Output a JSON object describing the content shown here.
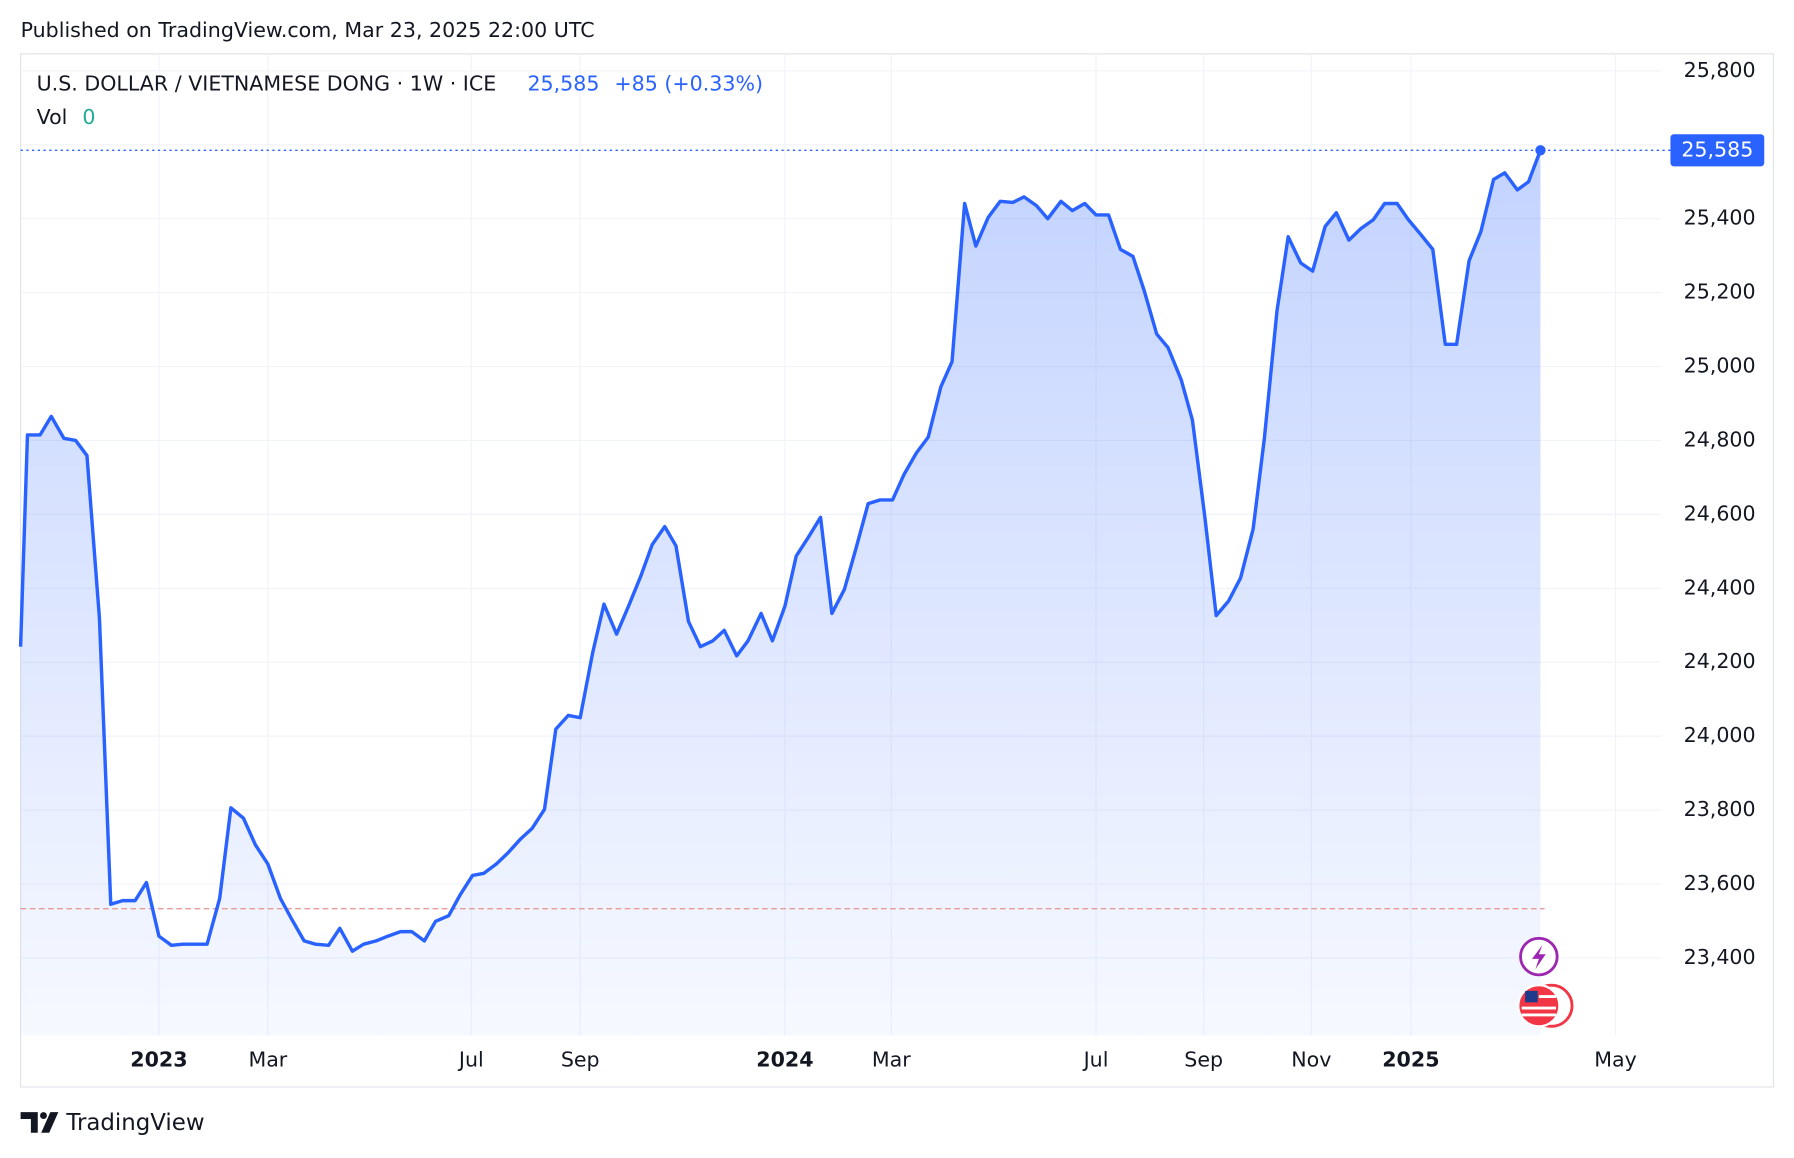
{
  "header": {
    "published": "Published on TradingView.com, Mar 23, 2025 22:00 UTC"
  },
  "footer": {
    "brand": "TradingView"
  },
  "chart_data": {
    "type": "area",
    "title": "U.S. DOLLAR / VIETNAMESE DONG · 1W · ICE",
    "price_label": "25,585",
    "change_label": "+85 (+0.33%)",
    "vol_label": "Vol",
    "vol_value": 0,
    "last_label": "25,585",
    "color": "#2962ff",
    "baseline": 23533,
    "grid": true,
    "xlim": [
      2022.779,
      2025.4
    ],
    "ylim": [
      23190,
      25846
    ],
    "xticks": [
      2023,
      {
        "value": 2023.174,
        "label": "Mar"
      },
      {
        "value": 2023.499,
        "label": "Jul"
      },
      {
        "value": 2023.673,
        "label": "Sep"
      },
      2024,
      {
        "value": 2024.17,
        "label": "Mar"
      },
      {
        "value": 2024.497,
        "label": "Jul"
      },
      {
        "value": 2024.669,
        "label": "Sep"
      },
      {
        "value": 2024.841,
        "label": "Nov"
      },
      2025,
      {
        "value": 2025.327,
        "label": "May"
      }
    ],
    "yticks": [
      {
        "value": 23400,
        "label": "23,400"
      },
      {
        "value": 23600,
        "label": "23,600"
      },
      {
        "value": 23800,
        "label": "23,800"
      },
      {
        "value": 24000,
        "label": "24,000"
      },
      {
        "value": 24200,
        "label": "24,200"
      },
      {
        "value": 24400,
        "label": "24,400"
      },
      {
        "value": 24600,
        "label": "24,600"
      },
      {
        "value": 24800,
        "label": "24,800"
      },
      {
        "value": 25000,
        "label": "25,000"
      },
      {
        "value": 25200,
        "label": "25,200"
      },
      {
        "value": 25400,
        "label": "25,400"
      },
      {
        "value": 25600,
        "label": "25,600"
      },
      {
        "value": 25800,
        "label": "25,800"
      }
    ],
    "x": [
      2022.779,
      2022.79,
      2022.81,
      2022.828,
      2022.848,
      2022.867,
      2022.885,
      2022.905,
      2022.923,
      2022.942,
      2022.962,
      2022.98,
      2023.0,
      2023.02,
      2023.038,
      2023.059,
      2023.077,
      2023.097,
      2023.115,
      2023.135,
      2023.154,
      2023.174,
      2023.194,
      2023.212,
      2023.232,
      2023.25,
      2023.271,
      2023.289,
      2023.309,
      2023.327,
      2023.347,
      2023.366,
      2023.386,
      2023.404,
      2023.424,
      2023.442,
      2023.463,
      2023.481,
      2023.501,
      2023.519,
      2023.539,
      2023.558,
      2023.578,
      2023.596,
      2023.616,
      2023.634,
      2023.654,
      2023.673,
      2023.693,
      2023.711,
      2023.731,
      2023.75,
      2023.77,
      2023.788,
      2023.808,
      2023.826,
      2023.846,
      2023.865,
      2023.885,
      2023.903,
      2023.923,
      2023.941,
      2023.962,
      2023.98,
      2024.0,
      2024.018,
      2024.037,
      2024.057,
      2024.075,
      2024.095,
      2024.113,
      2024.133,
      2024.152,
      2024.172,
      2024.19,
      2024.21,
      2024.229,
      2024.249,
      2024.267,
      2024.287,
      2024.305,
      2024.325,
      2024.344,
      2024.364,
      2024.382,
      2024.402,
      2024.42,
      2024.441,
      2024.459,
      2024.479,
      2024.497,
      2024.517,
      2024.536,
      2024.556,
      2024.574,
      2024.594,
      2024.612,
      2024.633,
      2024.651,
      2024.671,
      2024.689,
      2024.709,
      2024.728,
      2024.748,
      2024.766,
      2024.786,
      2024.804,
      2024.824,
      2024.843,
      2024.863,
      2024.881,
      2024.901,
      2024.92,
      2024.94,
      2024.958,
      2024.978,
      2024.996,
      2025.016,
      2025.035,
      2025.055,
      2025.073,
      2025.093,
      2025.112,
      2025.132,
      2025.15,
      2025.17,
      2025.188,
      2025.207
    ],
    "values": [
      24242,
      24815,
      24815,
      24865,
      24806,
      24800,
      24759,
      24320,
      23545,
      23555,
      23555,
      23604,
      23459,
      23434,
      23437,
      23437,
      23437,
      23561,
      23806,
      23778,
      23706,
      23654,
      23561,
      23505,
      23446,
      23437,
      23434,
      23480,
      23418,
      23437,
      23446,
      23459,
      23471,
      23471,
      23446,
      23499,
      23514,
      23570,
      23623,
      23629,
      23654,
      23685,
      23722,
      23750,
      23802,
      24019,
      24056,
      24050,
      24227,
      24357,
      24276,
      24351,
      24434,
      24518,
      24567,
      24515,
      24310,
      24242,
      24258,
      24286,
      24217,
      24258,
      24332,
      24258,
      24351,
      24487,
      24537,
      24592,
      24332,
      24397,
      24505,
      24629,
      24639,
      24639,
      24707,
      24766,
      24809,
      24945,
      25013,
      25441,
      25326,
      25404,
      25447,
      25444,
      25459,
      25435,
      25400,
      25447,
      25422,
      25441,
      25410,
      25410,
      25317,
      25298,
      25205,
      25088,
      25051,
      24964,
      24855,
      24592,
      24326,
      24366,
      24428,
      24561,
      24806,
      25150,
      25351,
      25280,
      25258,
      25379,
      25416,
      25342,
      25373,
      25397,
      25441,
      25441,
      25397,
      25357,
      25317,
      25060,
      25060,
      25286,
      25366,
      25506,
      25524,
      25478,
      25500,
      25585
    ]
  }
}
